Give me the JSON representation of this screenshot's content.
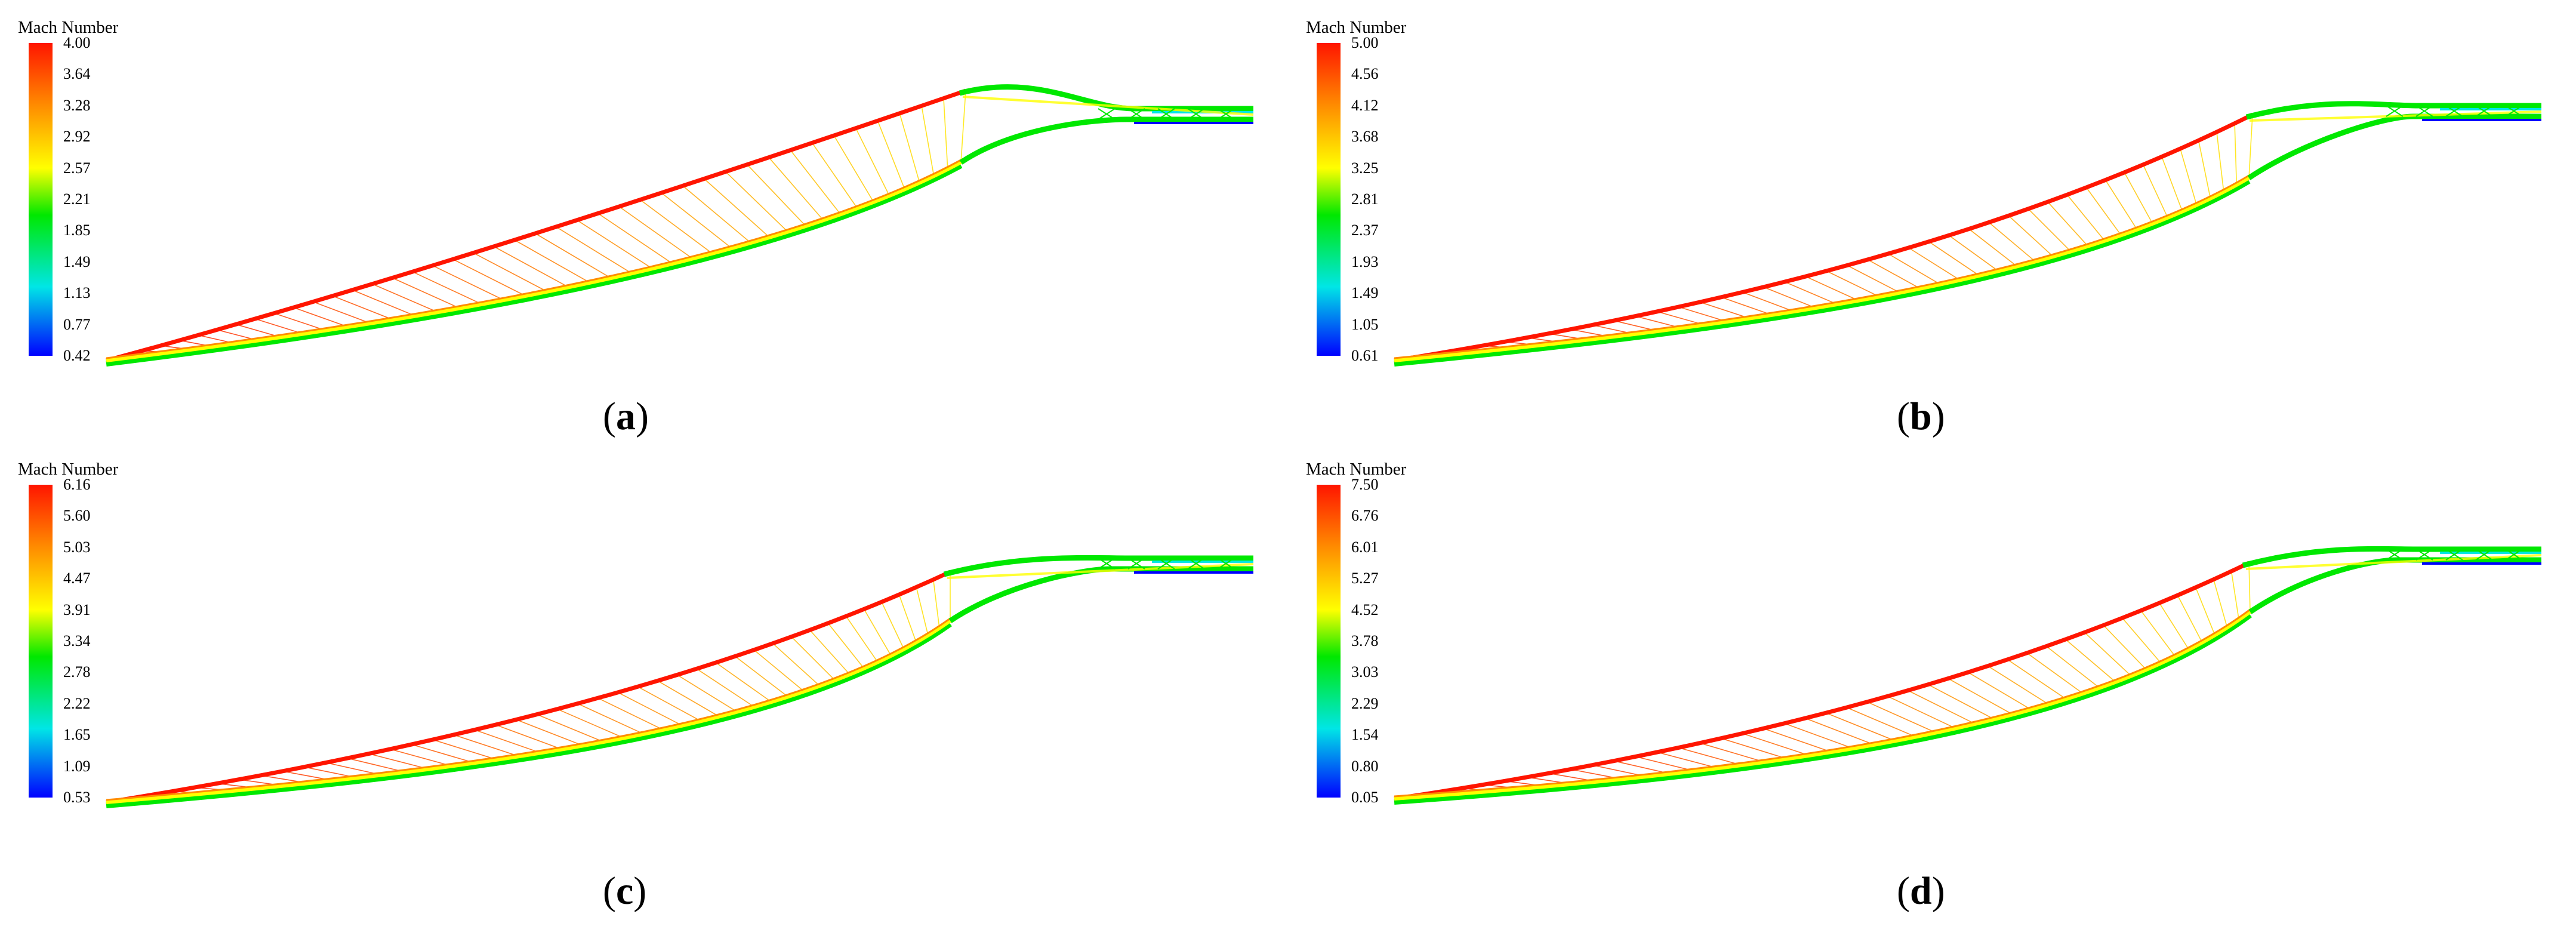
{
  "colorbar_title": "Mach Number",
  "colors": {
    "red": "#ff1500",
    "orange": "#ff8c00",
    "yellow": "#ffff00",
    "green": "#00e800",
    "cyan": "#00e6e6",
    "blue": "#0000ff"
  },
  "panels": [
    {
      "id": "a",
      "caption_open": "(",
      "caption_letter": "a",
      "caption_close": ")",
      "ticks": [
        "4.00",
        "3.64",
        "3.28",
        "2.92",
        "2.57",
        "2.21",
        "1.85",
        "1.49",
        "1.13",
        "0.77",
        "0.42"
      ]
    },
    {
      "id": "b",
      "caption_open": "(",
      "caption_letter": "b",
      "caption_close": ")",
      "ticks": [
        "5.00",
        "4.56",
        "4.12",
        "3.68",
        "3.25",
        "2.81",
        "2.37",
        "1.93",
        "1.49",
        "1.05",
        "0.61"
      ]
    },
    {
      "id": "c",
      "caption_open": "(",
      "caption_letter": "c",
      "caption_close": ")",
      "ticks": [
        "6.16",
        "5.60",
        "5.03",
        "4.47",
        "3.91",
        "3.34",
        "2.78",
        "2.22",
        "1.65",
        "1.09",
        "0.53"
      ]
    },
    {
      "id": "d",
      "caption_open": "(",
      "caption_letter": "d",
      "caption_close": ")",
      "ticks": [
        "7.50",
        "6.76",
        "6.01",
        "5.27",
        "4.52",
        "3.78",
        "3.03",
        "2.29",
        "1.54",
        "0.80",
        "0.05"
      ]
    }
  ]
}
